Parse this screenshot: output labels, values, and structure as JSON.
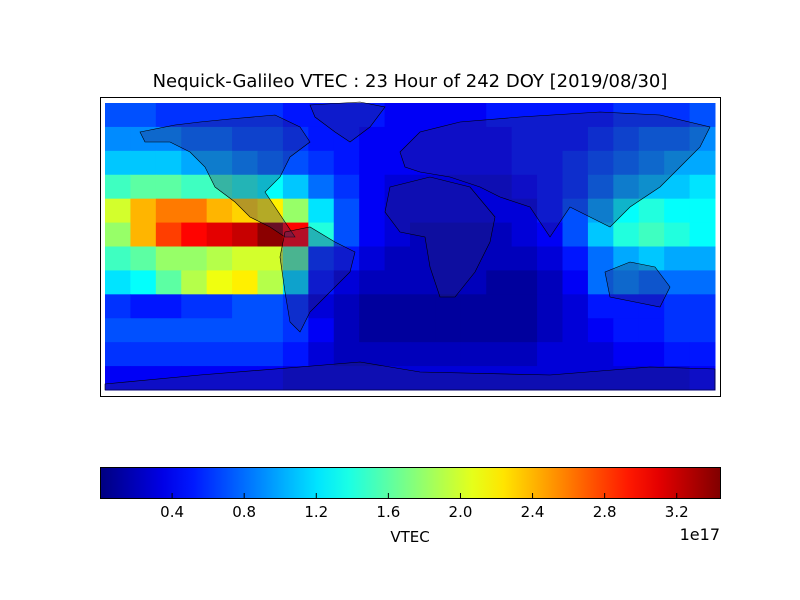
{
  "chart_data": {
    "type": "heatmap",
    "title": "Nequick-Galileo VTEC : 23 Hour of 242 DOY [2019/08/30]",
    "projection": "cylindrical world map with coastlines and country borders",
    "lon_range": [
      -180,
      180
    ],
    "lat_range": [
      -90,
      90
    ],
    "colormap": "jet",
    "value_scale": "1e17",
    "vmin": 0.0,
    "vmax": 3.44,
    "colorbar": {
      "label": "VTEC",
      "exponent_label": "1e17",
      "ticks": [
        "0.4",
        "0.8",
        "1.2",
        "1.6",
        "2.0",
        "2.4",
        "2.8",
        "3.2"
      ],
      "orientation": "horizontal"
    },
    "grid_note_lon_step_deg": 15,
    "values": [
      [
        0.7,
        0.7,
        0.6,
        0.6,
        0.6,
        0.6,
        0.6,
        0.5,
        0.5,
        0.5,
        0.5,
        0.4,
        0.4,
        0.4,
        0.4,
        0.5,
        0.5,
        0.5,
        0.5,
        0.5,
        0.6,
        0.6,
        0.6,
        0.7
      ],
      [
        0.9,
        0.9,
        0.9,
        0.8,
        0.8,
        0.7,
        0.7,
        0.6,
        0.5,
        0.5,
        0.4,
        0.4,
        0.4,
        0.4,
        0.4,
        0.4,
        0.5,
        0.5,
        0.5,
        0.6,
        0.7,
        0.8,
        0.8,
        0.9
      ],
      [
        1.1,
        1.1,
        1.1,
        1.0,
        1.0,
        0.9,
        0.8,
        0.7,
        0.6,
        0.5,
        0.4,
        0.4,
        0.4,
        0.4,
        0.4,
        0.4,
        0.5,
        0.5,
        0.6,
        0.7,
        0.8,
        0.9,
        1.0,
        1.0
      ],
      [
        1.5,
        1.6,
        1.6,
        1.5,
        1.5,
        1.4,
        1.3,
        1.1,
        0.8,
        0.6,
        0.4,
        0.3,
        0.3,
        0.3,
        0.3,
        0.3,
        0.4,
        0.5,
        0.6,
        0.8,
        1.0,
        1.1,
        1.1,
        1.2
      ],
      [
        2.0,
        2.4,
        2.6,
        2.6,
        2.4,
        2.3,
        2.2,
        1.8,
        1.2,
        0.7,
        0.4,
        0.3,
        0.3,
        0.3,
        0.3,
        0.3,
        0.3,
        0.5,
        0.7,
        1.0,
        1.3,
        1.4,
        1.3,
        1.3
      ],
      [
        1.8,
        2.4,
        2.8,
        3.0,
        3.1,
        3.2,
        3.4,
        3.0,
        1.4,
        0.7,
        0.4,
        0.3,
        0.2,
        0.2,
        0.2,
        0.2,
        0.3,
        0.4,
        0.7,
        1.1,
        1.4,
        1.5,
        1.4,
        1.3
      ],
      [
        1.5,
        1.6,
        1.8,
        1.8,
        1.9,
        2.0,
        2.0,
        1.6,
        0.6,
        0.5,
        0.3,
        0.2,
        0.2,
        0.2,
        0.2,
        0.2,
        0.2,
        0.3,
        0.5,
        0.8,
        1.0,
        1.1,
        1.0,
        1.0
      ],
      [
        1.2,
        1.3,
        1.6,
        1.9,
        2.1,
        2.2,
        1.9,
        1.2,
        0.5,
        0.3,
        0.2,
        0.2,
        0.2,
        0.2,
        0.2,
        0.1,
        0.1,
        0.2,
        0.4,
        0.8,
        0.9,
        0.8,
        0.8,
        0.8
      ],
      [
        0.6,
        0.5,
        0.5,
        0.6,
        0.6,
        0.7,
        0.7,
        0.6,
        0.3,
        0.2,
        0.1,
        0.1,
        0.1,
        0.1,
        0.1,
        0.1,
        0.1,
        0.2,
        0.3,
        0.5,
        0.5,
        0.5,
        0.6,
        0.6
      ],
      [
        0.7,
        0.7,
        0.7,
        0.7,
        0.7,
        0.7,
        0.7,
        0.6,
        0.4,
        0.2,
        0.1,
        0.1,
        0.1,
        0.1,
        0.1,
        0.1,
        0.1,
        0.2,
        0.3,
        0.4,
        0.5,
        0.5,
        0.6,
        0.6
      ],
      [
        0.6,
        0.6,
        0.6,
        0.6,
        0.6,
        0.6,
        0.6,
        0.5,
        0.3,
        0.2,
        0.2,
        0.2,
        0.2,
        0.2,
        0.2,
        0.2,
        0.2,
        0.3,
        0.3,
        0.3,
        0.4,
        0.4,
        0.5,
        0.5
      ],
      [
        0.4,
        0.4,
        0.4,
        0.4,
        0.4,
        0.4,
        0.4,
        0.3,
        0.3,
        0.3,
        0.3,
        0.3,
        0.3,
        0.3,
        0.3,
        0.3,
        0.3,
        0.3,
        0.3,
        0.3,
        0.3,
        0.3,
        0.3,
        0.4
      ]
    ]
  }
}
